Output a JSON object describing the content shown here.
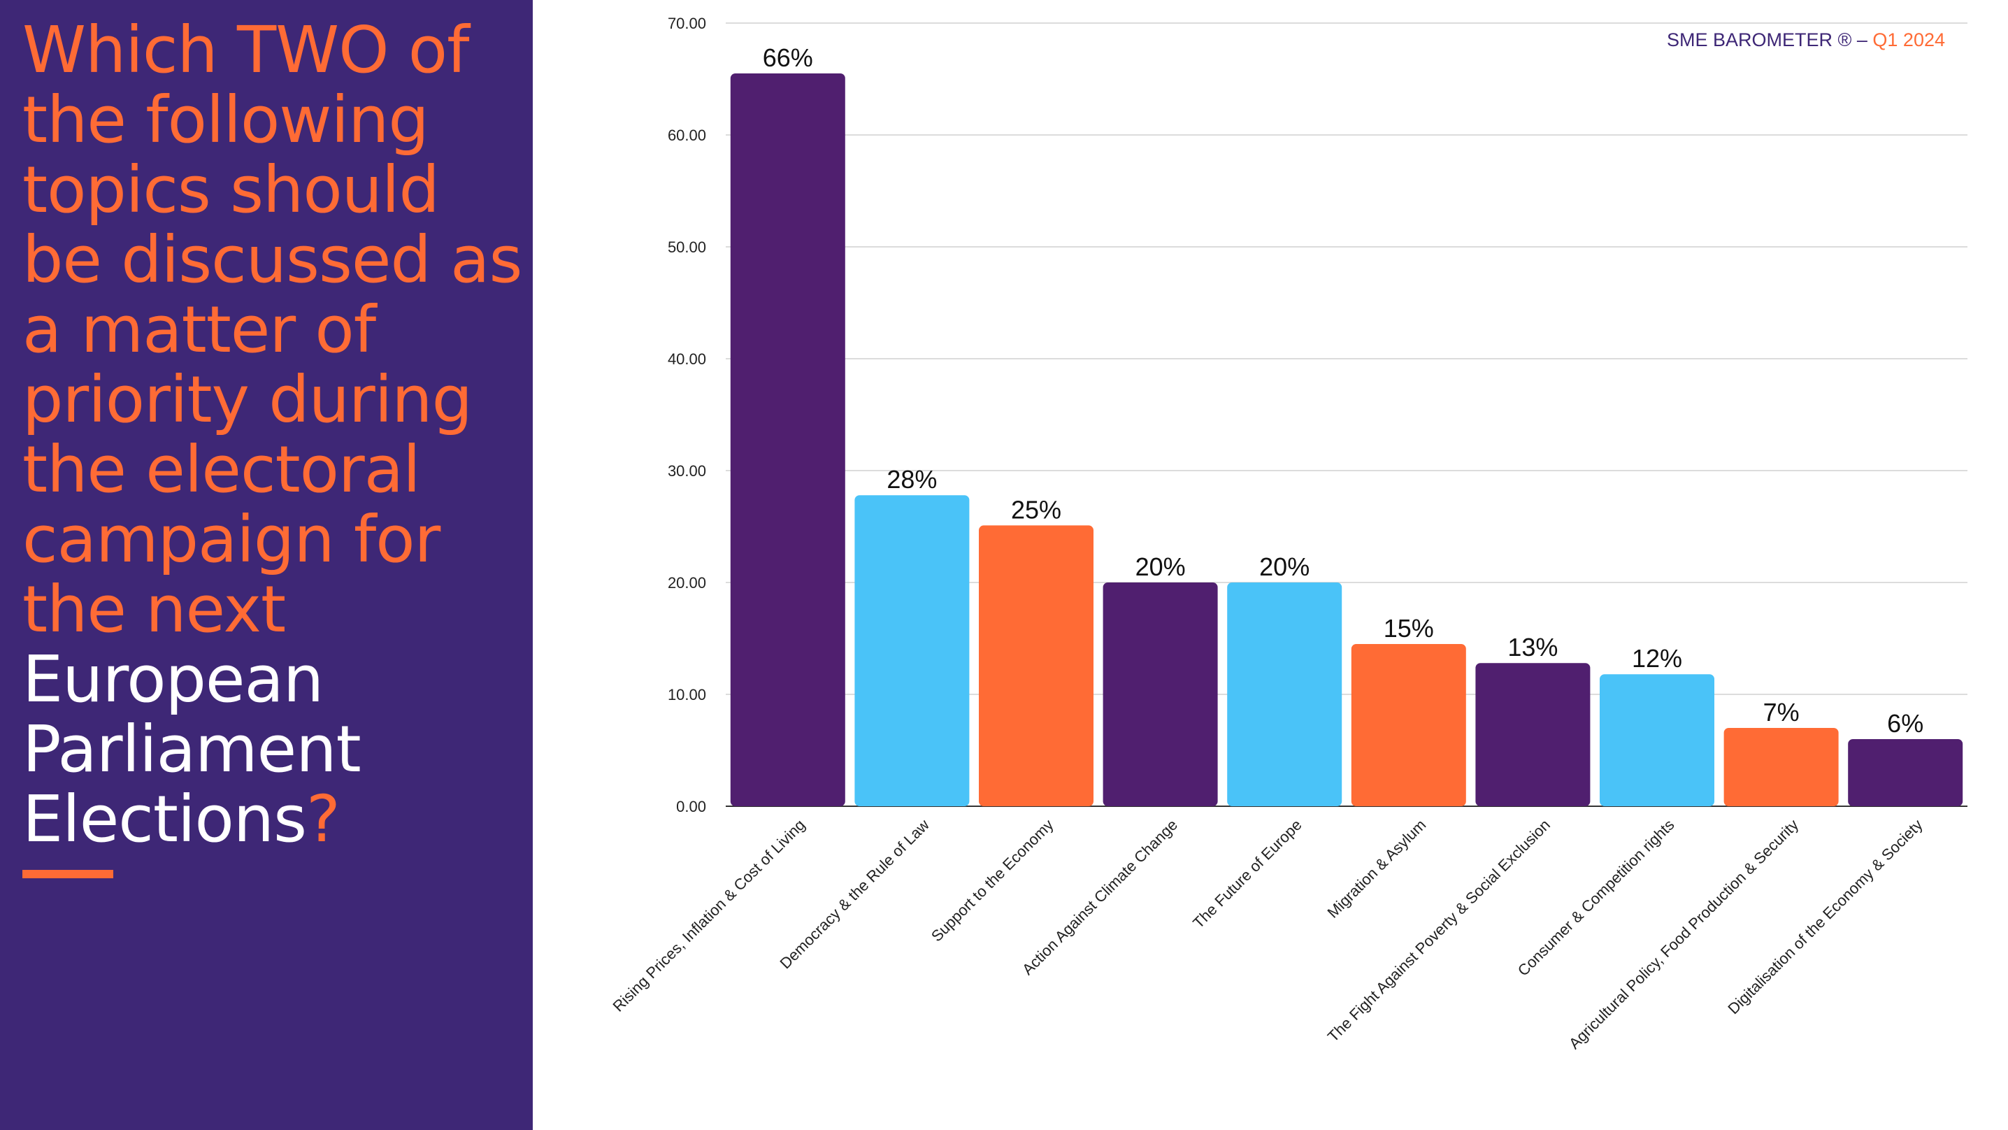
{
  "question": {
    "part1": "Which TWO of the following topics should be discussed as a matter of priority during the electoral campaign for the next",
    "part2": "European Parliament Elections",
    "mark": "?"
  },
  "brand": {
    "name": "SME BAROMETER ®",
    "sep": " – ",
    "period": "Q1 2024"
  },
  "colors": {
    "purple": "#501F6F",
    "blue": "#4AC3F8",
    "orange": "#FF6B35",
    "panel": "#3E2776"
  },
  "chart_data": {
    "type": "bar",
    "categories": [
      "Rising Prices, Inflation & Cost of Living",
      "Democracy & the Rule of Law",
      "Support to the Economy",
      "Action Against Climate Change",
      "The Future of Europe",
      "Migration & Asylum",
      "The Fight Against Poverty & Social Exclusion",
      "Consumer & Competition rights",
      "Agricultural Policy, Food Production & Security",
      "Digitalisation of the Economy & Society"
    ],
    "values": [
      65.5,
      27.8,
      25.1,
      20,
      20,
      14.5,
      12.8,
      11.8,
      7,
      6
    ],
    "labels": [
      "66%",
      "28%",
      "25%",
      "20%",
      "20%",
      "15%",
      "13%",
      "12%",
      "7%",
      "6%"
    ],
    "bar_colors": [
      "#501F6F",
      "#4AC3F8",
      "#FF6B35",
      "#501F6F",
      "#4AC3F8",
      "#FF6B35",
      "#501F6F",
      "#4AC3F8",
      "#FF6B35",
      "#501F6F"
    ],
    "ylim": [
      0,
      70
    ],
    "yticks": [
      "0.00",
      "10.00",
      "20.00",
      "30.00",
      "40.00",
      "50.00",
      "60.00",
      "70.00"
    ],
    "grid": true
  }
}
